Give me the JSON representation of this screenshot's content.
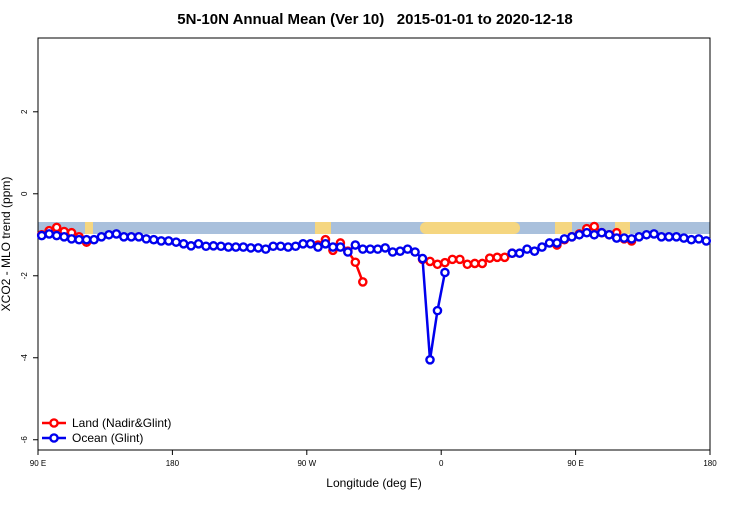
{
  "chart_data": {
    "type": "line",
    "title": "5N-10N Annual Mean (Ver 10)   2015-01-01 to 2020-12-18",
    "x_label": "Longitude (deg E)",
    "y_label": "XCO2 - MLO trend (ppm)",
    "xlim": [
      90,
      540
    ],
    "xticks": [
      {
        "value": 90,
        "label": "90 E"
      },
      180,
      {
        "value": 270,
        "label": "90 W"
      },
      {
        "value": 360,
        "label": "0"
      },
      {
        "value": 450,
        "label": "90 E"
      },
      {
        "value": 540,
        "label": "180"
      }
    ],
    "ylim": [
      -6.25,
      3.8
    ],
    "yticks": [
      -6,
      -4,
      -2,
      0,
      2
    ],
    "legend": "lower left",
    "x": [
      92.5,
      97.5,
      102.5,
      107.5,
      112.5,
      117.5,
      122.5,
      127.5,
      132.5,
      137.5,
      142.5,
      147.5,
      152.5,
      157.5,
      162.5,
      167.5,
      172.5,
      177.5,
      182.5,
      187.5,
      192.5,
      197.5,
      202.5,
      207.5,
      212.5,
      217.5,
      222.5,
      227.5,
      232.5,
      237.5,
      242.5,
      247.5,
      252.5,
      257.5,
      262.5,
      267.5,
      272.5,
      277.5,
      282.5,
      287.5,
      292.5,
      297.5,
      302.5,
      307.5,
      312.5,
      317.5,
      322.5,
      327.5,
      332.5,
      337.5,
      342.5,
      347.5,
      352.5,
      357.5,
      362.5,
      367.5,
      372.5,
      377.5,
      382.5,
      387.5,
      392.5,
      397.5,
      402.5,
      407.5,
      412.5,
      417.5,
      422.5,
      427.5,
      432.5,
      437.5,
      442.5,
      447.5,
      452.5,
      457.5,
      462.5,
      467.5,
      472.5,
      477.5,
      482.5,
      487.5,
      492.5,
      497.5,
      502.5,
      507.5,
      512.5,
      517.5,
      522.5,
      527.5,
      532.5,
      537.5
    ],
    "series": [
      {
        "name": "Land (Nadir&Glint)",
        "color": "#ff0000",
        "values": [
          -1.0,
          -0.9,
          -0.82,
          -0.92,
          -0.95,
          -1.05,
          -1.18,
          null,
          null,
          null,
          null,
          null,
          null,
          null,
          null,
          null,
          null,
          null,
          null,
          null,
          null,
          null,
          null,
          null,
          null,
          null,
          null,
          null,
          null,
          null,
          null,
          null,
          null,
          null,
          null,
          null,
          null,
          -1.25,
          -1.12,
          -1.38,
          -1.2,
          -1.4,
          -1.67,
          -2.15,
          null,
          null,
          null,
          null,
          null,
          null,
          null,
          -1.6,
          -1.65,
          -1.72,
          -1.68,
          -1.6,
          -1.6,
          -1.72,
          -1.7,
          -1.7,
          -1.57,
          -1.55,
          -1.55,
          -1.45,
          null,
          null,
          null,
          null,
          null,
          -1.25,
          -1.12,
          -1.05,
          -0.98,
          -0.85,
          -0.8,
          -0.95,
          -1.0,
          -0.95,
          -1.1,
          -1.15,
          null,
          null,
          null,
          null,
          null,
          null,
          null,
          null,
          null,
          null
        ]
      },
      {
        "name": "Ocean (Glint)",
        "color": "#0000ee",
        "values": [
          -1.02,
          -0.98,
          -1.02,
          -1.05,
          -1.1,
          -1.12,
          -1.12,
          -1.12,
          -1.05,
          -1.0,
          -0.98,
          -1.05,
          -1.05,
          -1.05,
          -1.1,
          -1.12,
          -1.15,
          -1.15,
          -1.18,
          -1.22,
          -1.27,
          -1.22,
          -1.28,
          -1.27,
          -1.28,
          -1.3,
          -1.3,
          -1.3,
          -1.32,
          -1.32,
          -1.35,
          -1.28,
          -1.28,
          -1.3,
          -1.28,
          -1.22,
          -1.22,
          -1.3,
          -1.22,
          -1.3,
          -1.3,
          -1.42,
          -1.25,
          -1.35,
          -1.35,
          -1.35,
          -1.32,
          -1.42,
          -1.4,
          -1.35,
          -1.42,
          -1.58,
          -4.05,
          -2.85,
          -1.92,
          null,
          null,
          null,
          null,
          null,
          null,
          null,
          null,
          -1.45,
          -1.45,
          -1.35,
          -1.4,
          -1.3,
          -1.2,
          -1.2,
          -1.1,
          -1.05,
          -1.0,
          -0.95,
          -1.0,
          -0.95,
          -1.0,
          -1.08,
          -1.08,
          -1.1,
          -1.05,
          -1.0,
          -0.98,
          -1.05,
          -1.05,
          -1.05,
          -1.08,
          -1.12,
          -1.1,
          -1.15
        ]
      }
    ]
  }
}
